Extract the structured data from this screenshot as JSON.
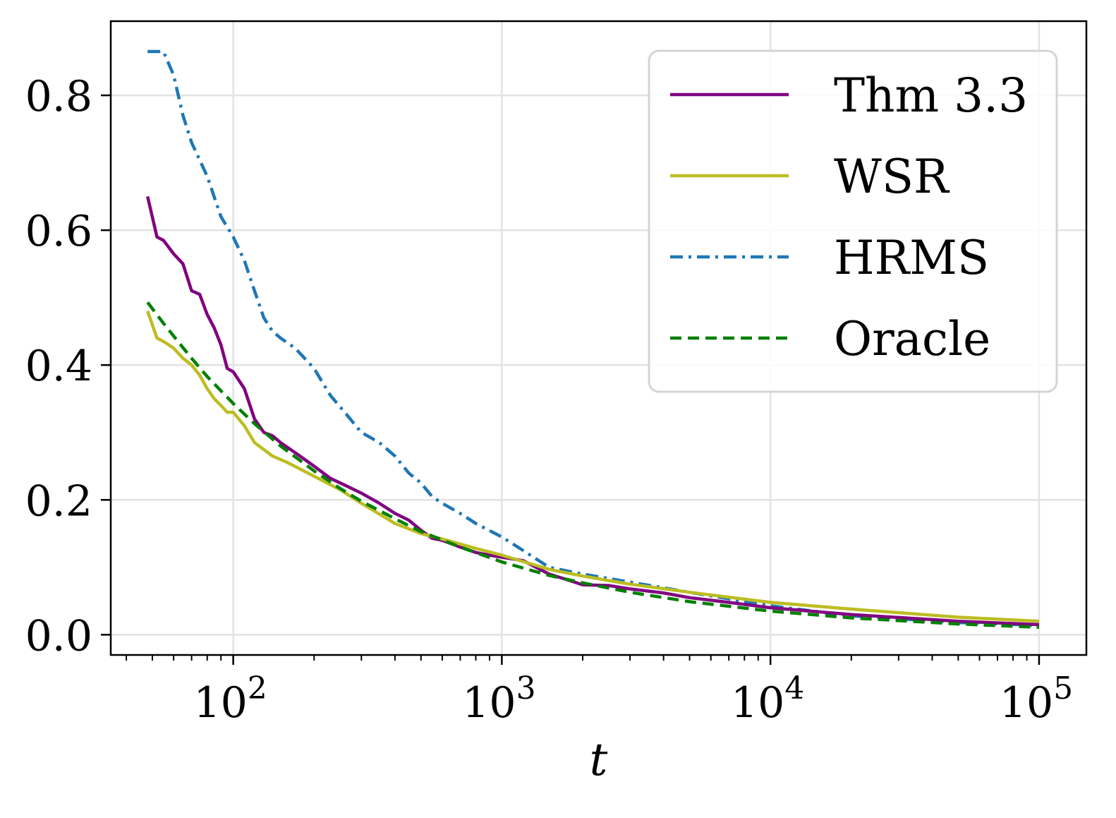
{
  "chart_data": {
    "type": "line",
    "title": "",
    "xlabel": "t",
    "ylabel": "",
    "x_scale": "log",
    "xlim": [
      35,
      150000
    ],
    "ylim": [
      -0.03,
      0.91
    ],
    "grid": true,
    "legend_position": "top-right",
    "x_ticks": [
      {
        "value": 100,
        "base": "10",
        "exp": "2"
      },
      {
        "value": 1000,
        "base": "10",
        "exp": "3"
      },
      {
        "value": 10000,
        "base": "10",
        "exp": "4"
      },
      {
        "value": 100000,
        "base": "10",
        "exp": "5"
      }
    ],
    "y_ticks": [
      {
        "value": 0.0,
        "label": "0.0"
      },
      {
        "value": 0.2,
        "label": "0.2"
      },
      {
        "value": 0.4,
        "label": "0.4"
      },
      {
        "value": 0.6,
        "label": "0.6"
      },
      {
        "value": 0.8,
        "label": "0.8"
      }
    ],
    "series": [
      {
        "name": "Thm 3.3",
        "color": "#800080",
        "dash": "solid",
        "x": [
          48,
          52,
          55,
          60,
          65,
          70,
          75,
          80,
          85,
          90,
          95,
          100,
          110,
          120,
          130,
          140,
          150,
          170,
          200,
          230,
          260,
          300,
          350,
          400,
          450,
          500,
          550,
          600,
          700,
          800,
          900,
          1000,
          1200,
          1500,
          1800,
          2000,
          2500,
          3000,
          4000,
          5000,
          7000,
          10000,
          20000,
          50000,
          100000
        ],
        "y": [
          0.65,
          0.59,
          0.585,
          0.565,
          0.55,
          0.51,
          0.505,
          0.475,
          0.455,
          0.43,
          0.395,
          0.39,
          0.365,
          0.32,
          0.3,
          0.295,
          0.285,
          0.27,
          0.25,
          0.232,
          0.222,
          0.21,
          0.195,
          0.18,
          0.17,
          0.155,
          0.143,
          0.14,
          0.13,
          0.122,
          0.118,
          0.115,
          0.11,
          0.09,
          0.08,
          0.074,
          0.073,
          0.068,
          0.062,
          0.055,
          0.048,
          0.04,
          0.03,
          0.02,
          0.015
        ]
      },
      {
        "name": "WSR",
        "color": "#bcbd22",
        "dash": "solid",
        "x": [
          48,
          52,
          55,
          60,
          65,
          70,
          75,
          80,
          85,
          90,
          95,
          100,
          110,
          120,
          140,
          160,
          200,
          250,
          300,
          400,
          500,
          600,
          800,
          1000,
          1500,
          2000,
          3000,
          5000,
          10000,
          20000,
          50000,
          100000
        ],
        "y": [
          0.48,
          0.44,
          0.435,
          0.425,
          0.41,
          0.4,
          0.385,
          0.365,
          0.35,
          0.34,
          0.33,
          0.33,
          0.31,
          0.285,
          0.265,
          0.255,
          0.235,
          0.215,
          0.195,
          0.165,
          0.15,
          0.142,
          0.128,
          0.118,
          0.097,
          0.087,
          0.075,
          0.063,
          0.048,
          0.038,
          0.026,
          0.02
        ]
      },
      {
        "name": "HRMS",
        "color": "#1f77b4",
        "dash": "dashdot",
        "x": [
          48,
          55,
          60,
          65,
          70,
          80,
          90,
          100,
          110,
          120,
          130,
          140,
          150,
          170,
          200,
          230,
          260,
          300,
          350,
          400,
          450,
          500,
          550,
          600,
          700,
          800,
          1000,
          1200,
          1500,
          2000,
          3000,
          5000,
          10000,
          20000,
          50000,
          100000
        ],
        "y": [
          0.865,
          0.865,
          0.83,
          0.77,
          0.73,
          0.68,
          0.62,
          0.59,
          0.555,
          0.51,
          0.47,
          0.45,
          0.44,
          0.425,
          0.395,
          0.355,
          0.33,
          0.3,
          0.285,
          0.265,
          0.24,
          0.225,
          0.205,
          0.195,
          0.18,
          0.165,
          0.145,
          0.125,
          0.1,
          0.09,
          0.078,
          0.063,
          0.043,
          0.028,
          0.018,
          0.014
        ]
      },
      {
        "name": "Oracle",
        "color": "#008000",
        "dash": "dashed",
        "x": [
          48,
          55,
          60,
          70,
          80,
          100,
          120,
          150,
          200,
          250,
          300,
          400,
          500,
          700,
          1000,
          1500,
          2000,
          3000,
          5000,
          10000,
          20000,
          50000,
          100000
        ],
        "y": [
          0.493,
          0.462,
          0.443,
          0.41,
          0.383,
          0.343,
          0.313,
          0.28,
          0.243,
          0.217,
          0.198,
          0.172,
          0.153,
          0.13,
          0.108,
          0.088,
          0.077,
          0.063,
          0.049,
          0.035,
          0.025,
          0.016,
          0.011
        ]
      }
    ]
  }
}
